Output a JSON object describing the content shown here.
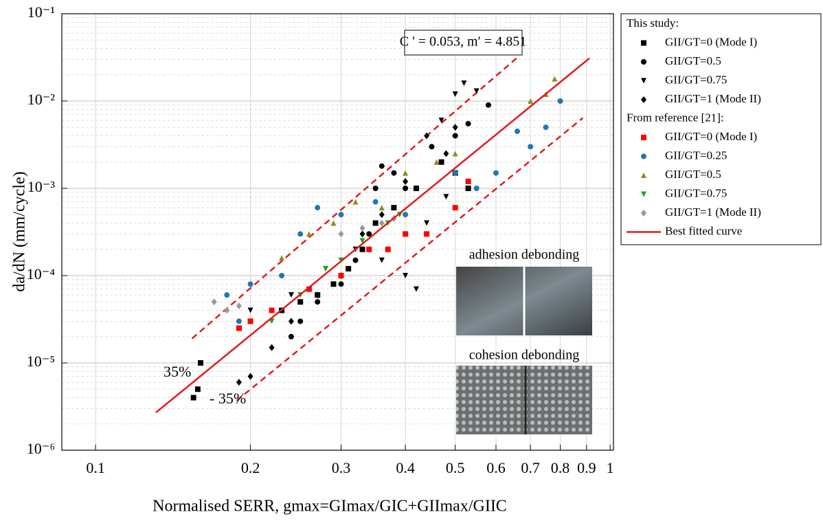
{
  "chart_data": {
    "type": "scatter",
    "xlabel": "Normalised SERR, gmax=GImax/GIC+GIImax/GIIC",
    "ylabel": "da/dN (mm/cycle)",
    "xscale": "log",
    "yscale": "log",
    "grid": true,
    "xlim": [
      0.086,
      1.015
    ],
    "ylim": [
      1e-06,
      0.1
    ],
    "xticks": [
      0.1,
      0.2,
      0.3,
      0.4,
      0.5,
      0.6,
      0.7,
      0.8,
      0.9,
      1
    ],
    "yticks": [
      {
        "value": 1e-06,
        "label": "10⁻⁶"
      },
      {
        "value": 1e-05,
        "label": "10⁻⁵"
      },
      {
        "value": 0.0001,
        "label": "10⁻⁴"
      },
      {
        "value": 0.001,
        "label": "10⁻³"
      },
      {
        "value": 0.01,
        "label": "10⁻²"
      },
      {
        "value": 0.1,
        "label": "10⁻¹"
      }
    ],
    "legend_headings": [
      "This study:",
      "From reference [21]:"
    ],
    "annotations": [
      "C ' = 0.053, m′ = 4.851",
      "35%",
      "- 35%",
      "adhesion debonding",
      "cohesion debonding"
    ],
    "series": [
      {
        "name": "GII/GT=0 (Mode I)",
        "group": 0,
        "marker": "square",
        "color": "#000000",
        "x": [
          0.155,
          0.158,
          0.16,
          0.19,
          0.2,
          0.23,
          0.25,
          0.27,
          0.29,
          0.31,
          0.33,
          0.35,
          0.38,
          0.42,
          0.47,
          0.5,
          0.53
        ],
        "values": [
          4e-06,
          5e-06,
          1e-05,
          2.5e-05,
          3e-05,
          4e-05,
          5e-05,
          6e-05,
          8e-05,
          0.00012,
          0.0002,
          0.0004,
          0.0006,
          0.001,
          0.002,
          0.0015,
          0.001
        ]
      },
      {
        "name": "GII/GT=0.5",
        "group": 0,
        "marker": "circle",
        "color": "#000000",
        "x": [
          0.24,
          0.25,
          0.27,
          0.3,
          0.32,
          0.34,
          0.35,
          0.36,
          0.38,
          0.4,
          0.45,
          0.5,
          0.53,
          0.58
        ],
        "values": [
          2e-05,
          3e-05,
          5e-05,
          8e-05,
          0.00015,
          0.0003,
          0.001,
          0.0018,
          0.0015,
          0.001,
          0.003,
          0.004,
          0.0055,
          0.009
        ]
      },
      {
        "name": "GII/GT=0.75",
        "group": 0,
        "marker": "tri-down",
        "color": "#000000",
        "x": [
          0.2,
          0.24,
          0.28,
          0.32,
          0.36,
          0.4,
          0.42,
          0.44,
          0.48,
          0.5,
          0.52,
          0.55,
          0.47
        ],
        "values": [
          4e-05,
          6e-05,
          0.00012,
          0.0002,
          0.00015,
          0.0001,
          7e-05,
          0.0004,
          0.0008,
          0.012,
          0.016,
          0.013,
          0.006
        ]
      },
      {
        "name": "GII/GT=1 (Mode II)",
        "group": 0,
        "marker": "diamond",
        "color": "#000000",
        "x": [
          0.19,
          0.2,
          0.22,
          0.24,
          0.27,
          0.3,
          0.33,
          0.36,
          0.4,
          0.44,
          0.48,
          0.5
        ],
        "values": [
          6e-06,
          7e-06,
          1.5e-05,
          3e-05,
          6e-05,
          0.0001,
          0.0003,
          0.0005,
          0.0012,
          0.004,
          0.0025,
          0.005
        ]
      },
      {
        "name": "GII/GT=0 (Mode I)",
        "group": 1,
        "marker": "square",
        "color": "#ff0000",
        "x": [
          0.19,
          0.2,
          0.22,
          0.26,
          0.3,
          0.34,
          0.37,
          0.4,
          0.44,
          0.5,
          0.53
        ],
        "values": [
          2.5e-05,
          3e-05,
          4e-05,
          7e-05,
          0.0001,
          0.0002,
          0.0002,
          0.0003,
          0.0003,
          0.0006,
          0.0012
        ]
      },
      {
        "name": "GII/GT=0.25",
        "group": 1,
        "marker": "circle",
        "color": "#1f77b4",
        "x": [
          0.18,
          0.19,
          0.2,
          0.23,
          0.25,
          0.27,
          0.3,
          0.35,
          0.4,
          0.5,
          0.55,
          0.6,
          0.66,
          0.7,
          0.75,
          0.8
        ],
        "values": [
          6e-05,
          3e-05,
          8e-05,
          0.0001,
          0.0003,
          0.0006,
          0.0005,
          0.0007,
          0.0005,
          0.0015,
          0.001,
          0.0015,
          0.0045,
          0.003,
          0.005,
          0.01
        ]
      },
      {
        "name": "GII/GT=0.5",
        "group": 1,
        "marker": "tri-up",
        "color": "#8c8c1e",
        "x": [
          0.23,
          0.26,
          0.29,
          0.32,
          0.36,
          0.4,
          0.46,
          0.5,
          0.7,
          0.75,
          0.78
        ],
        "values": [
          0.00016,
          0.0003,
          0.0004,
          0.0007,
          0.0006,
          0.0015,
          0.002,
          0.0025,
          0.01,
          0.012,
          0.018
        ]
      },
      {
        "name": "GII/GT=0.75",
        "group": 1,
        "marker": "tri-down",
        "color": "#1aa81a",
        "x": [
          0.22,
          0.25,
          0.28,
          0.3,
          0.33,
          0.37,
          0.39
        ],
        "values": [
          3e-05,
          6e-05,
          0.00012,
          0.00015,
          0.00025,
          0.0004,
          0.0005
        ]
      },
      {
        "name": "GII/GT=1 (Mode II)",
        "group": 1,
        "marker": "diamond",
        "color": "#999999",
        "x": [
          0.17,
          0.18,
          0.19,
          0.3,
          0.33,
          0.36,
          0.38
        ],
        "values": [
          5e-05,
          4e-05,
          4.5e-05,
          0.0003,
          0.00035,
          0.0004,
          0.00045
        ]
      },
      {
        "name": "Best fitted curve",
        "marker": "line",
        "color": "#e31a1c",
        "x": [
          0.131,
          0.912
        ],
        "values": [
          2.7e-06,
          0.031
        ]
      }
    ],
    "bounds": [
      {
        "color": "#e31a1c",
        "x": [
          0.154,
          0.658
        ],
        "values": [
          1.9e-05,
          0.031
        ]
      },
      {
        "color": "#e31a1c",
        "x": [
          0.188,
          0.885
        ],
        "values": [
          3.7e-06,
          0.0064
        ]
      }
    ]
  }
}
